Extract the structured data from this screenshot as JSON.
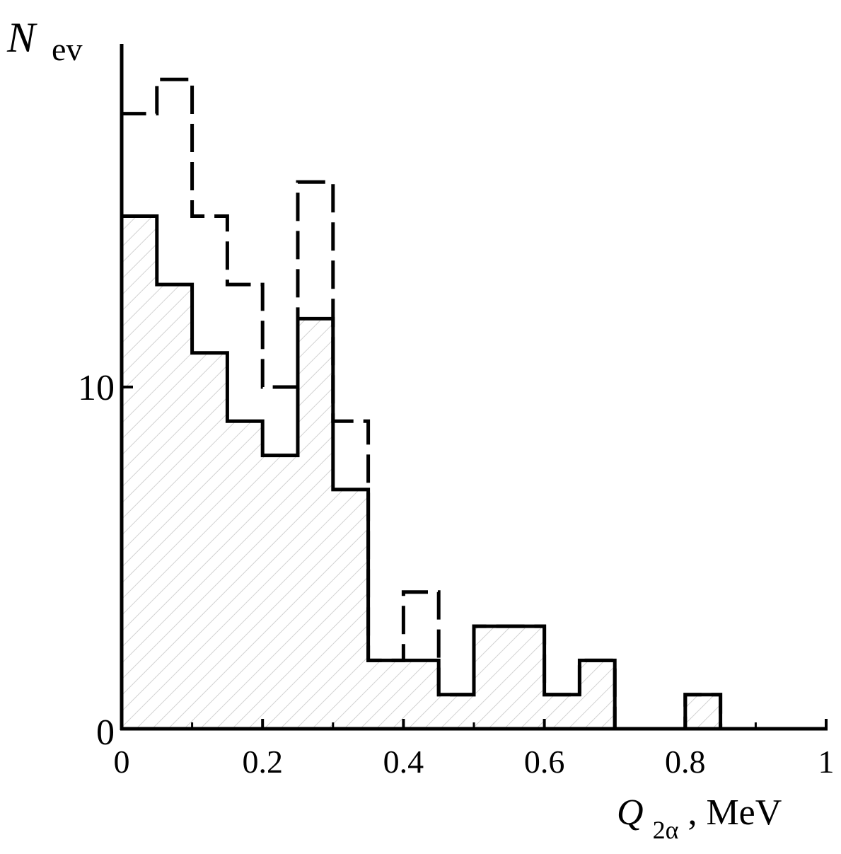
{
  "chart_data": {
    "type": "bar",
    "subtype": "step-histogram",
    "title": "",
    "ylabel_main": "N",
    "ylabel_sub": "ev",
    "xlabel_main": "Q",
    "xlabel_sub": "2α",
    "xlabel_unit": ", MeV",
    "xlim": [
      0,
      1
    ],
    "ylim": [
      0,
      20
    ],
    "grid": false,
    "x_ticks": [
      {
        "value": 0,
        "label": "0"
      },
      {
        "value": 0.2,
        "label": "0.2"
      },
      {
        "value": 0.4,
        "label": "0.4"
      },
      {
        "value": 0.6,
        "label": "0.6"
      },
      {
        "value": 0.8,
        "label": "0.8"
      },
      {
        "value": 1,
        "label": "1"
      }
    ],
    "x_minor_ticks": [
      0.1,
      0.3,
      0.5,
      0.7,
      0.9
    ],
    "y_ticks": [
      {
        "value": 0,
        "label": "0"
      },
      {
        "value": 10,
        "label": "10"
      }
    ],
    "bin_edges": [
      0,
      0.05,
      0.1,
      0.15,
      0.2,
      0.25,
      0.3,
      0.35,
      0.4,
      0.45,
      0.5,
      0.55,
      0.6,
      0.65,
      0.7,
      0.75,
      0.8,
      0.85,
      0.9,
      0.95,
      1.0
    ],
    "series": [
      {
        "style": "dashed",
        "values": [
          18,
          19,
          15,
          13,
          10,
          16,
          9,
          2,
          4,
          1,
          3,
          3,
          1,
          2,
          0,
          0,
          1,
          0,
          0,
          0
        ]
      },
      {
        "style": "solid-hatched",
        "values": [
          15,
          13,
          11,
          9,
          8,
          12,
          7,
          2,
          2,
          1,
          3,
          3,
          1,
          2,
          0,
          0,
          1,
          0,
          0,
          0
        ]
      }
    ],
    "colors": {
      "line": "#000000",
      "hatch": "#cfcfcf"
    }
  }
}
